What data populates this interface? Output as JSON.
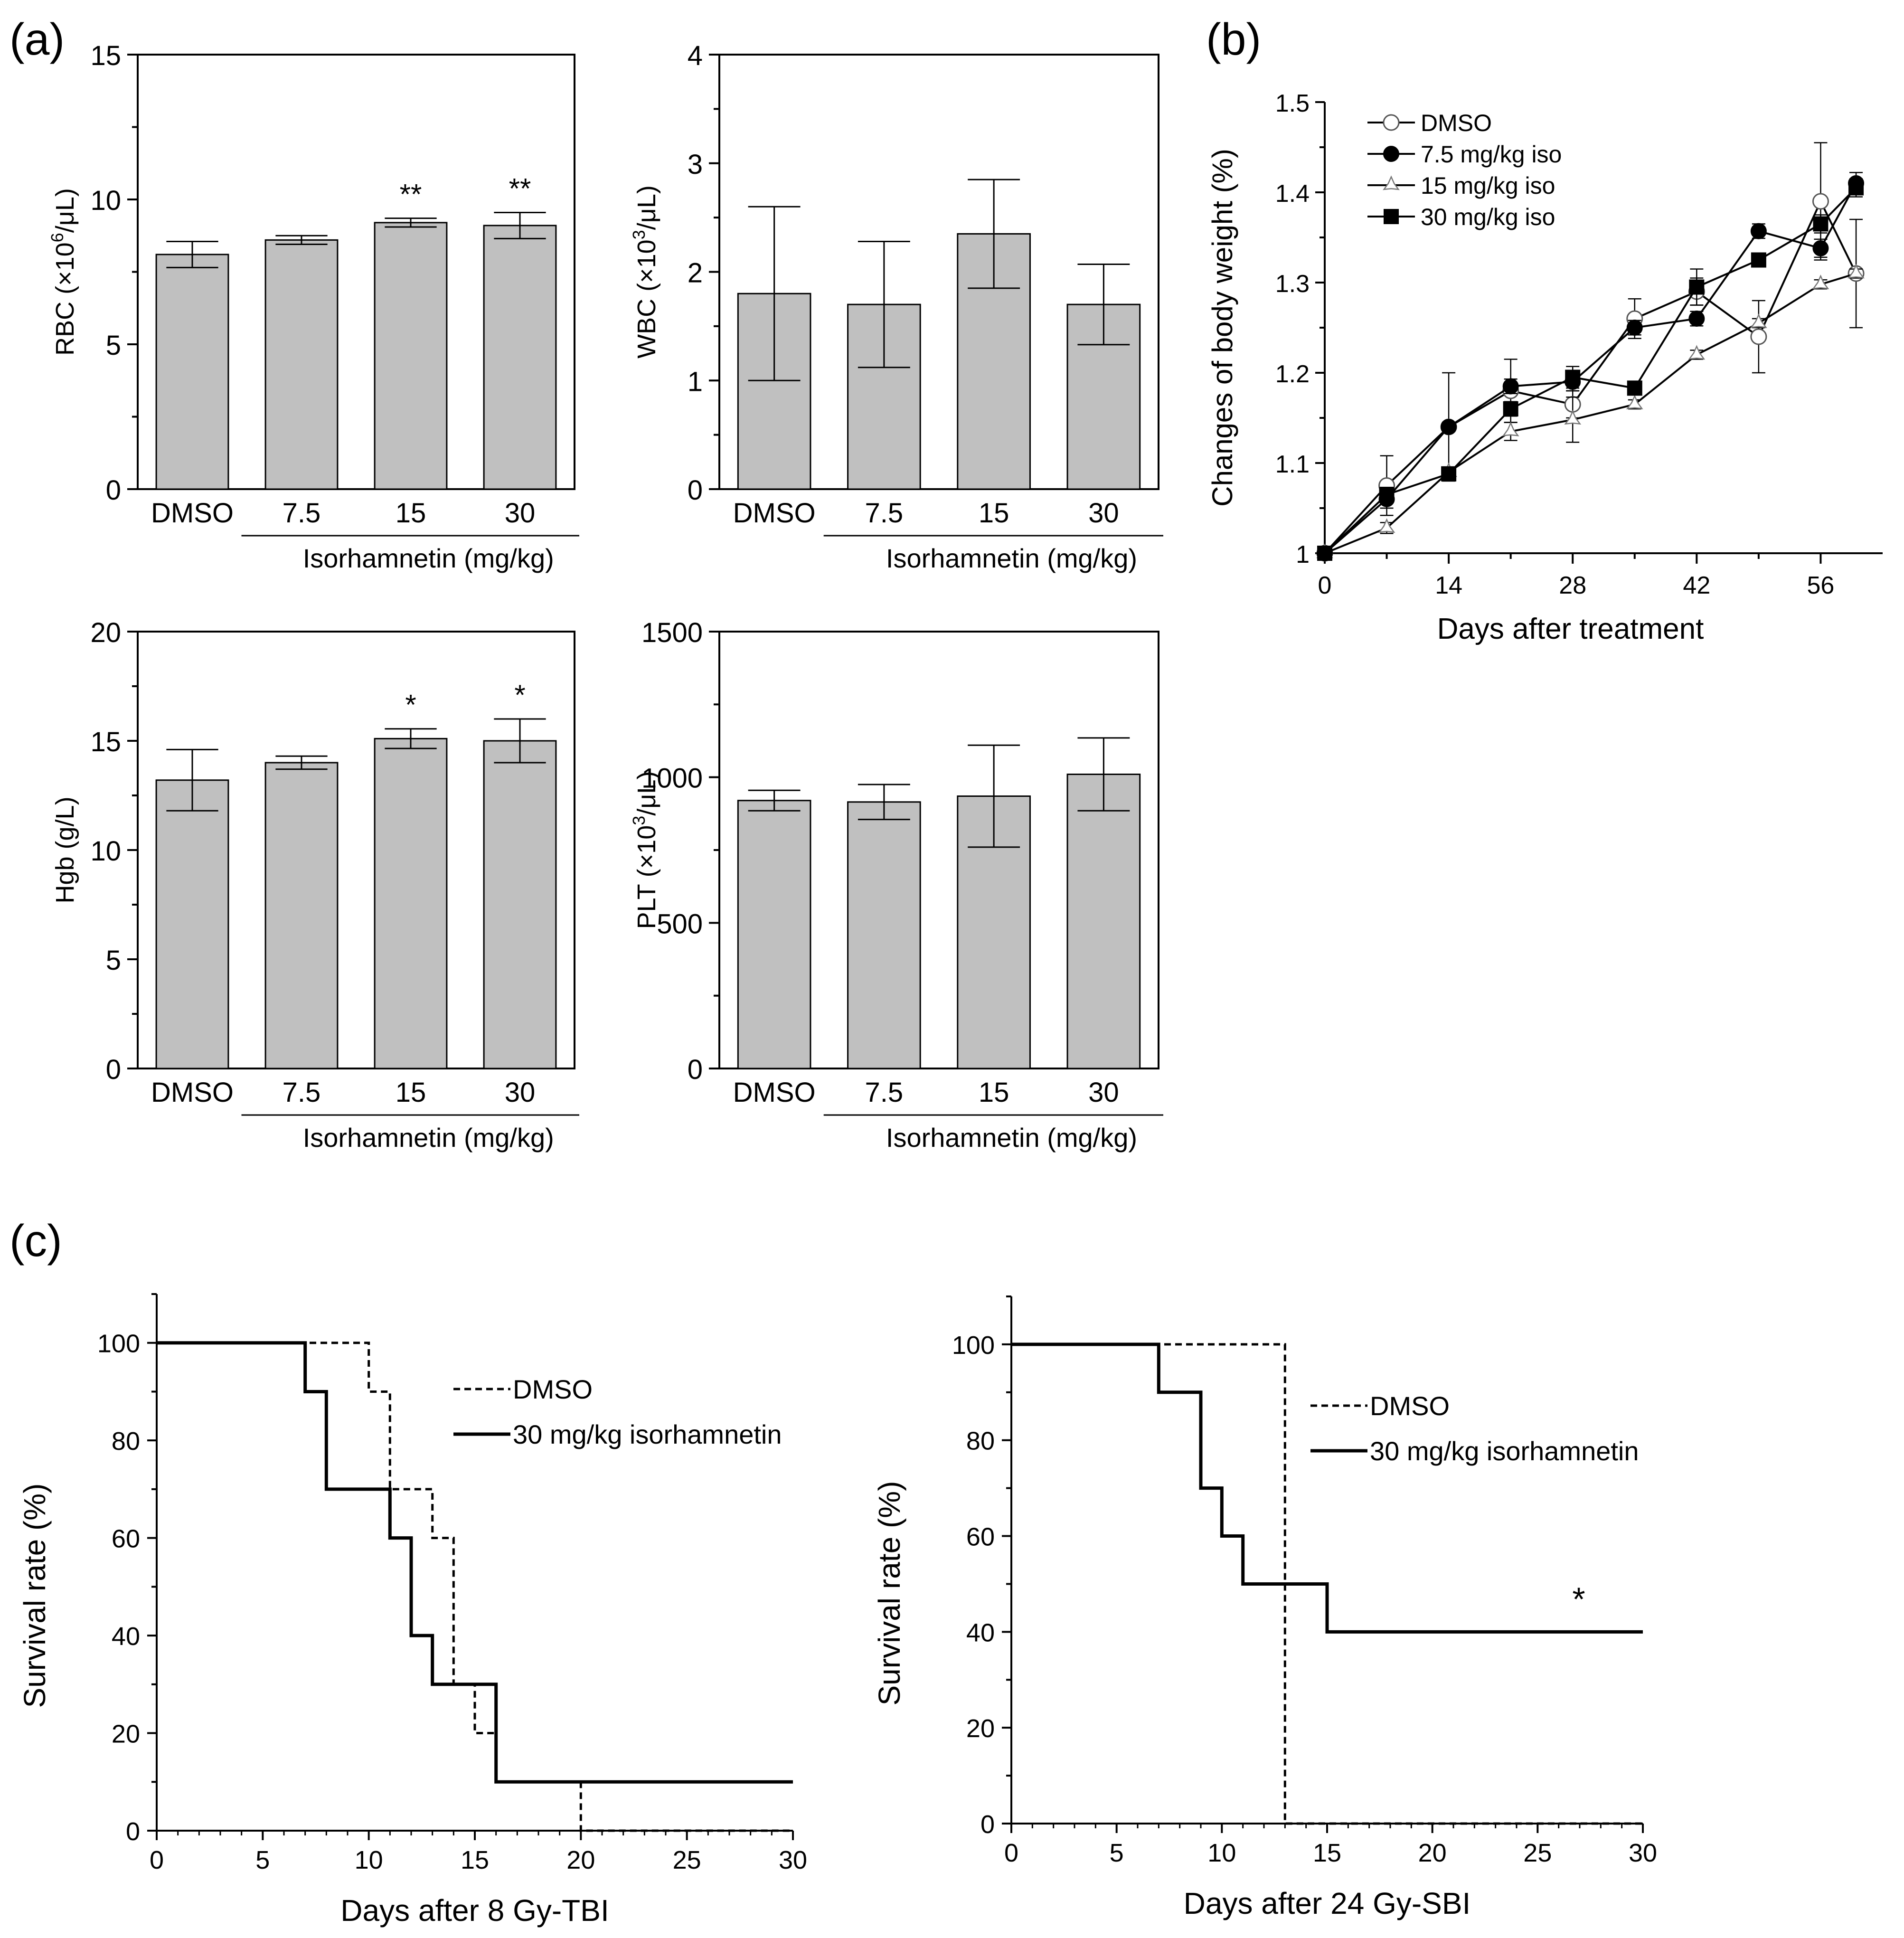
{
  "figure": {
    "panel_labels": [
      "(a)",
      "(b)",
      "(c)"
    ]
  },
  "chart_data": [
    {
      "id": "rbc",
      "panel": "(a)",
      "type": "bar",
      "categories": [
        "DMSO",
        "7.5",
        "15",
        "30"
      ],
      "group_label": "Isorhamnetin (mg/kg)",
      "ylabel_parts": [
        "RBC (×10",
        "6",
        "/μL)"
      ],
      "ylim": [
        0,
        15
      ],
      "yticks": [
        0,
        5,
        10,
        15
      ],
      "values": [
        8.1,
        8.6,
        9.2,
        9.1
      ],
      "errors": [
        0.45,
        0.15,
        0.15,
        0.45
      ],
      "annotations": [
        "",
        "",
        "**",
        "**"
      ],
      "bar_color": "#c0c0c0"
    },
    {
      "id": "wbc",
      "panel": "(a)",
      "type": "bar",
      "categories": [
        "DMSO",
        "7.5",
        "15",
        "30"
      ],
      "group_label": "Isorhamnetin (mg/kg)",
      "ylabel_parts": [
        "WBC (×10",
        "3",
        "/μL)"
      ],
      "ylim": [
        0,
        4
      ],
      "yticks": [
        0,
        1,
        2,
        3,
        4
      ],
      "values": [
        1.8,
        1.7,
        2.35,
        1.7
      ],
      "errors": [
        0.8,
        0.58,
        0.5,
        0.37
      ],
      "annotations": [
        "",
        "",
        "",
        ""
      ],
      "bar_color": "#c0c0c0"
    },
    {
      "id": "hgb",
      "panel": "(a)",
      "type": "bar",
      "categories": [
        "DMSO",
        "7.5",
        "15",
        "30"
      ],
      "group_label": "Isorhamnetin (mg/kg)",
      "ylabel_parts": [
        "Hgb (g/L)",
        "",
        ""
      ],
      "ylim": [
        0,
        20
      ],
      "yticks": [
        0,
        5,
        10,
        15,
        20
      ],
      "values": [
        13.2,
        14.0,
        15.1,
        15.0
      ],
      "errors": [
        1.4,
        0.3,
        0.45,
        1.0
      ],
      "annotations": [
        "",
        "",
        "*",
        "*"
      ],
      "bar_color": "#c0c0c0"
    },
    {
      "id": "plt",
      "panel": "(a)",
      "type": "bar",
      "categories": [
        "DMSO",
        "7.5",
        "15",
        "30"
      ],
      "group_label": "Isorhamnetin (mg/kg)",
      "ylabel_parts": [
        "PLT (×10",
        "3",
        "/μL)"
      ],
      "ylim": [
        0,
        1500
      ],
      "yticks": [
        0,
        500,
        1000,
        1500
      ],
      "values": [
        920,
        915,
        935,
        1010
      ],
      "errors": [
        35,
        60,
        175,
        125
      ],
      "annotations": [
        "",
        "",
        "",
        ""
      ],
      "bar_color": "#c0c0c0"
    },
    {
      "id": "weight",
      "panel": "(b)",
      "type": "line",
      "xlabel": "Days after treatment",
      "ylabel": "Changes of body weight (%)",
      "xlim": [
        0,
        63
      ],
      "ylim": [
        1.0,
        1.5
      ],
      "xticks": [
        0,
        14,
        28,
        42,
        56
      ],
      "yticks": [
        1,
        1.1,
        1.2,
        1.3,
        1.4,
        1.5
      ],
      "ytick_labels": [
        "1",
        "1.1",
        "1.2",
        "1.3",
        "1.4",
        "1.5"
      ],
      "legend_position": "top-left",
      "series": [
        {
          "name": "DMSO",
          "marker": "open-circle",
          "x": [
            0,
            7,
            14,
            21,
            28,
            35,
            42,
            49,
            56,
            60
          ],
          "y": [
            1.0,
            1.075,
            1.14,
            1.18,
            1.165,
            1.26,
            1.29,
            1.24,
            1.39,
            1.31
          ],
          "err": [
            0,
            0.033,
            0.06,
            0.035,
            0.015,
            0.022,
            0.015,
            0.04,
            0.065,
            0.06
          ]
        },
        {
          "name": "7.5 mg/kg iso",
          "marker": "filled-circle",
          "x": [
            0,
            7,
            14,
            21,
            28,
            35,
            42,
            49,
            56,
            60
          ],
          "y": [
            1.0,
            1.06,
            1.14,
            1.185,
            1.19,
            1.25,
            1.26,
            1.357,
            1.338,
            1.41
          ],
          "err": [
            0,
            0.01,
            0.005,
            0.008,
            0.01,
            0.008,
            0.008,
            0.008,
            0.01,
            0.012
          ]
        },
        {
          "name": "15 mg/kg iso",
          "marker": "star",
          "x": [
            0,
            7,
            14,
            21,
            28,
            35,
            42,
            49,
            56,
            60
          ],
          "y": [
            1.0,
            1.028,
            1.09,
            1.135,
            1.148,
            1.165,
            1.22,
            1.255,
            1.298,
            1.31
          ],
          "err": [
            0,
            0.006,
            0.005,
            0.01,
            0.025,
            0.005,
            0.005,
            0.005,
            0.005,
            0.005
          ]
        },
        {
          "name": "30 mg/kg iso",
          "marker": "filled-square",
          "x": [
            0,
            7,
            14,
            21,
            28,
            35,
            42,
            49,
            56,
            60
          ],
          "y": [
            1.0,
            1.065,
            1.088,
            1.16,
            1.195,
            1.183,
            1.295,
            1.325,
            1.365,
            1.405
          ],
          "err": [
            0,
            0.008,
            0.005,
            0.008,
            0.012,
            0.005,
            0.02,
            0.005,
            0.01,
            0.01
          ]
        }
      ]
    },
    {
      "id": "surv-tbi",
      "panel": "(c)",
      "type": "line",
      "style": "step",
      "xlabel": "Days after 8 Gy-TBI",
      "ylabel": "Survival rate (%)",
      "xlim": [
        0,
        30
      ],
      "ylim": [
        0,
        110
      ],
      "xticks": [
        0,
        5,
        10,
        15,
        20,
        25,
        30
      ],
      "yticks": [
        0,
        20,
        40,
        60,
        80,
        100
      ],
      "legend_position": "top-right",
      "annotation": "",
      "series": [
        {
          "name": "DMSO",
          "dash": "dashed",
          "x": [
            0,
            10,
            11,
            13,
            14,
            15,
            16,
            20,
            30
          ],
          "y": [
            100,
            90,
            70,
            60,
            30,
            20,
            10,
            0,
            0
          ]
        },
        {
          "name": "30 mg/kg isorhamnetin",
          "dash": "solid",
          "x": [
            0,
            7,
            8,
            11,
            12,
            13,
            16,
            30
          ],
          "y": [
            100,
            90,
            70,
            60,
            40,
            30,
            10,
            10
          ]
        }
      ]
    },
    {
      "id": "surv-sbi",
      "panel": "(c)",
      "type": "line",
      "style": "step",
      "xlabel": "Days after 24 Gy-SBI",
      "ylabel": "Survival rate (%)",
      "xlim": [
        0,
        30
      ],
      "ylim": [
        0,
        110
      ],
      "xticks": [
        0,
        5,
        10,
        15,
        20,
        25,
        30
      ],
      "yticks": [
        0,
        20,
        40,
        60,
        80,
        100
      ],
      "legend_position": "top-right",
      "annotation": "*",
      "series": [
        {
          "name": "DMSO",
          "dash": "dashed",
          "x": [
            0,
            13,
            30
          ],
          "y": [
            100,
            0,
            0
          ]
        },
        {
          "name": "30 mg/kg isorhamnetin",
          "dash": "solid",
          "x": [
            0,
            7,
            9,
            10,
            11,
            15,
            30
          ],
          "y": [
            100,
            90,
            70,
            60,
            50,
            40,
            40
          ]
        }
      ]
    }
  ]
}
